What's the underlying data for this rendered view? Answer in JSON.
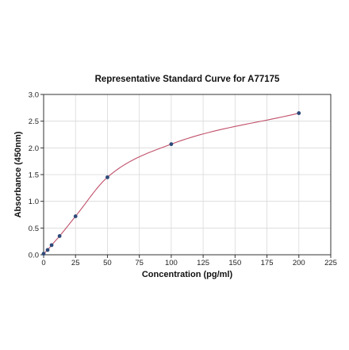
{
  "chart_data": {
    "type": "scatter",
    "title": "Representative Standard Curve for A77175",
    "xlabel": "Concentration (pg/ml)",
    "ylabel": "Absorbance (450nm)",
    "xlim": [
      0,
      225
    ],
    "ylim": [
      0,
      3.0
    ],
    "x_ticks": [
      0,
      25,
      50,
      75,
      100,
      125,
      150,
      175,
      200,
      225
    ],
    "y_ticks": [
      0.0,
      0.5,
      1.0,
      1.5,
      2.0,
      2.5,
      3.0
    ],
    "x_tick_labels": [
      "0",
      "25",
      "50",
      "75",
      "100",
      "125",
      "150",
      "175",
      "200",
      "225"
    ],
    "y_tick_labels": [
      "0.0",
      "0.5",
      "1.0",
      "1.5",
      "2.0",
      "2.5",
      "3.0"
    ],
    "grid": true,
    "series": [
      {
        "x": [
          0,
          3.125,
          6.25,
          12.5,
          25,
          50,
          100,
          200
        ],
        "y": [
          0.02,
          0.09,
          0.18,
          0.35,
          0.72,
          1.45,
          2.07,
          2.65
        ],
        "marker_color": "#2e4a7a"
      }
    ],
    "fit_curve_color": "#c0506a"
  }
}
